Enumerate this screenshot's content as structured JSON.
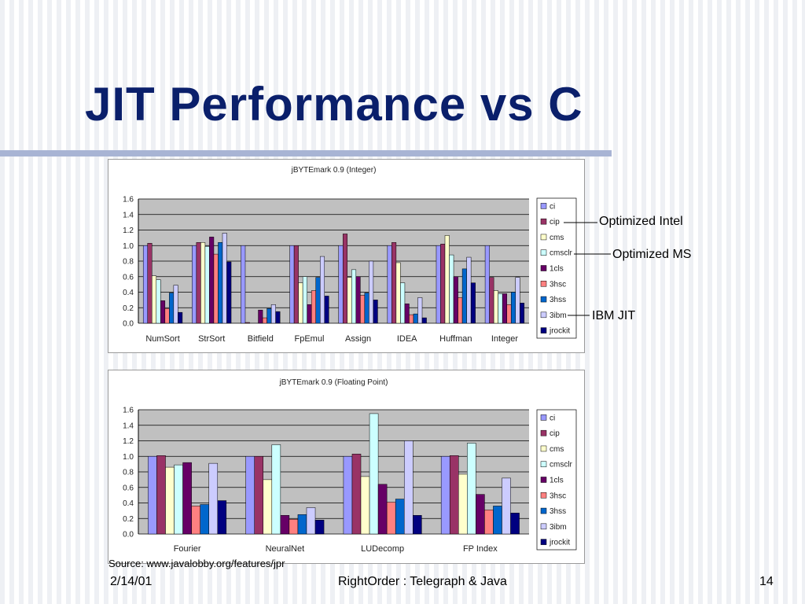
{
  "slide": {
    "title": "JIT Performance vs C",
    "source": "Source: www.javalobby.org/features/jpr",
    "footer_date": "2/14/01",
    "footer_center": "RightOrder : Telegraph & Java",
    "page_number": "14",
    "callouts": [
      "Optimized Intel",
      "Optimized MS",
      "IBM JIT"
    ]
  },
  "colors": {
    "ci": "#9999ff",
    "cip": "#993366",
    "cms": "#ffffcc",
    "cmsclr": "#ccffff",
    "1cls": "#660066",
    "3hsc": "#ff8080",
    "3hss": "#0066cc",
    "3ibm": "#ccccff",
    "jrockit": "#000080",
    "plot_bg": "#c0c0c0"
  },
  "chart_data": [
    {
      "type": "bar",
      "title": "jBYTEmark 0.9 (Integer)",
      "categories": [
        "NumSort",
        "StrSort",
        "Bitfield",
        "FpEmul",
        "Assign",
        "IDEA",
        "Huffman",
        "Integer"
      ],
      "ylim": [
        0,
        1.6
      ],
      "yticks": [
        "0.0",
        "0.2",
        "0.4",
        "0.6",
        "0.8",
        "1.0",
        "1.2",
        "1.4",
        "1.6"
      ],
      "grid": true,
      "legend": "right",
      "series": [
        {
          "name": "ci",
          "values": [
            1.0,
            1.0,
            1.0,
            1.0,
            1.0,
            1.0,
            1.0,
            1.0
          ]
        },
        {
          "name": "cip",
          "values": [
            1.03,
            1.04,
            0.01,
            1.0,
            1.15,
            1.04,
            1.02,
            0.59
          ]
        },
        {
          "name": "cms",
          "values": [
            0.61,
            1.04,
            0.0,
            0.52,
            0.59,
            0.78,
            1.13,
            0.42
          ]
        },
        {
          "name": "cmsclr",
          "values": [
            0.56,
            0.99,
            0.0,
            0.6,
            0.69,
            0.52,
            0.88,
            0.38
          ]
        },
        {
          "name": "1cls",
          "values": [
            0.29,
            1.11,
            0.17,
            0.24,
            0.6,
            0.25,
            0.6,
            0.38
          ]
        },
        {
          "name": "3hsc",
          "values": [
            0.19,
            0.89,
            0.07,
            0.42,
            0.36,
            0.11,
            0.33,
            0.24
          ]
        },
        {
          "name": "3hss",
          "values": [
            0.39,
            1.04,
            0.19,
            0.59,
            0.39,
            0.12,
            0.7,
            0.4
          ]
        },
        {
          "name": "3ibm",
          "values": [
            0.49,
            1.16,
            0.24,
            0.86,
            0.8,
            0.33,
            0.85,
            0.59
          ]
        },
        {
          "name": "jrockit",
          "values": [
            0.14,
            0.79,
            0.15,
            0.35,
            0.3,
            0.07,
            0.52,
            0.26
          ]
        }
      ]
    },
    {
      "type": "bar",
      "title": "jBYTEmark 0.9 (Floating Point)",
      "categories": [
        "Fourier",
        "NeuralNet",
        "LUDecomp",
        "FP Index"
      ],
      "ylim": [
        0,
        1.6
      ],
      "yticks": [
        "0.0",
        "0.2",
        "0.4",
        "0.6",
        "0.8",
        "1.0",
        "1.2",
        "1.4",
        "1.6"
      ],
      "grid": true,
      "legend": "right",
      "series": [
        {
          "name": "ci",
          "values": [
            1.0,
            1.0,
            1.0,
            1.0
          ]
        },
        {
          "name": "cip",
          "values": [
            1.01,
            1.0,
            1.03,
            1.01
          ]
        },
        {
          "name": "cms",
          "values": [
            0.86,
            0.7,
            0.74,
            0.77
          ]
        },
        {
          "name": "cmsclr",
          "values": [
            0.89,
            1.15,
            1.55,
            1.17
          ]
        },
        {
          "name": "1cls",
          "values": [
            0.92,
            0.24,
            0.64,
            0.51
          ]
        },
        {
          "name": "3hsc",
          "values": [
            0.36,
            0.19,
            0.41,
            0.31
          ]
        },
        {
          "name": "3hss",
          "values": [
            0.38,
            0.25,
            0.45,
            0.36
          ]
        },
        {
          "name": "3ibm",
          "values": [
            0.91,
            0.34,
            1.2,
            0.72
          ]
        },
        {
          "name": "jrockit",
          "values": [
            0.43,
            0.18,
            0.24,
            0.27
          ]
        }
      ]
    }
  ]
}
